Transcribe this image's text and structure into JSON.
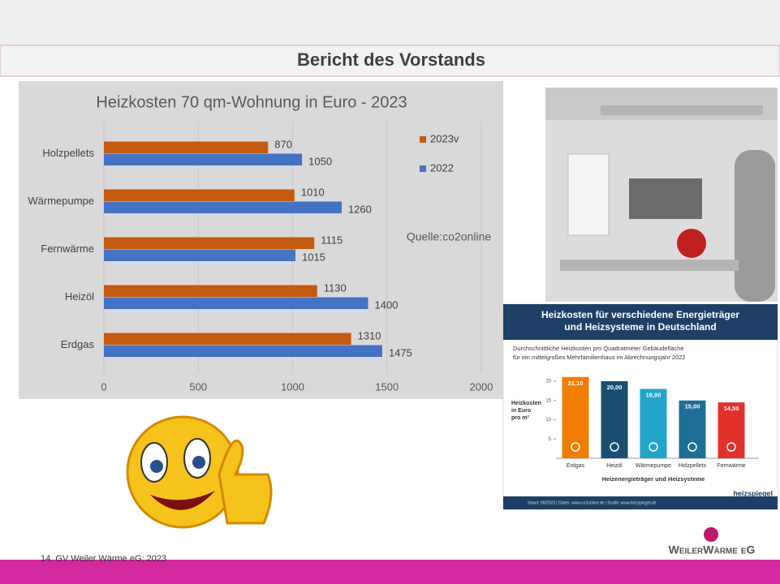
{
  "slide": {
    "title": "Bericht des Vorstands",
    "footer": "14. GV Weiler Wärme eG; 2023",
    "logo": "WeilerWärme eG"
  },
  "chart_data": [
    {
      "type": "bar",
      "orientation": "horizontal",
      "title": "Heizkosten 70 qm-Wohnung in Euro - 2023",
      "categories": [
        "Holzpellets",
        "Wärmepumpe",
        "Fernwärme",
        "Heizöl",
        "Erdgas"
      ],
      "series": [
        {
          "name": "2023v",
          "color": "#c55a11",
          "values": [
            870,
            1010,
            1115,
            1130,
            1310
          ]
        },
        {
          "name": "2022",
          "color": "#4472c4",
          "values": [
            1050,
            1260,
            1015,
            1400,
            1475
          ]
        }
      ],
      "xlim": [
        0,
        2000
      ],
      "xticks": [
        0,
        500,
        1000,
        1500,
        2000
      ],
      "grid": true,
      "annotation": "Quelle:co2online",
      "legend": "right"
    },
    {
      "type": "bar",
      "orientation": "vertical",
      "title_lines": [
        "Heizkosten für verschiedene Energieträger",
        "und Heizsysteme in Deutschland"
      ],
      "subtitle_lines": [
        "Durchschnittliche Heizkosten pro Quadratmeter Gebäudefläche",
        "für ein mittelgroßes Mehrfamilienhaus im Abrechnungsjahr 2022"
      ],
      "ylabel_lines": [
        "Heizkosten",
        "in Euro",
        "pro m²"
      ],
      "xlabel": "Heizenergieträger und Heizsysteme",
      "categories": [
        "Erdgas",
        "Heizöl",
        "Wärmepumpe",
        "Holzpellets",
        "Fernwärme"
      ],
      "values": [
        21.1,
        20,
        18,
        15,
        14.5
      ],
      "value_labels": [
        "21,10",
        "20,00",
        "18,00",
        "15,00",
        "14,50"
      ],
      "colors": [
        "#f07d00",
        "#1b4f72",
        "#22a5c9",
        "#1f6e95",
        "#e3312d"
      ],
      "ylim": [
        0,
        20
      ],
      "yticks": [
        5,
        10,
        15,
        20
      ],
      "source": "Stand: 09/2023 | Daten: www.co2online.de | Grafik: www.heizspiegel.de",
      "brand": "heizspiegel"
    }
  ]
}
